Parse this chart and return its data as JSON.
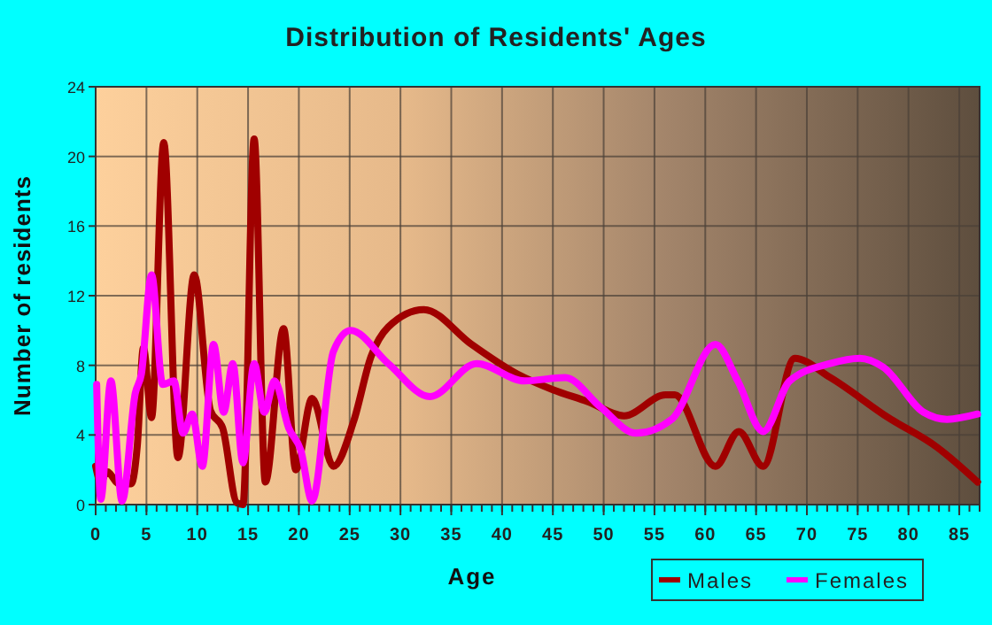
{
  "chart_data": {
    "type": "line",
    "title": "Distribution of Residents' Ages",
    "xlabel": "Age",
    "ylabel": "Number of residents",
    "xlim": [
      0,
      87
    ],
    "xticks": [
      0,
      5,
      10,
      15,
      20,
      25,
      30,
      35,
      40,
      45,
      50,
      55,
      60,
      65,
      70,
      75,
      80,
      85
    ],
    "ylim": [
      0,
      24
    ],
    "yticks": [
      0,
      4,
      8,
      12,
      16,
      20,
      24
    ],
    "grid": true,
    "legend": "bottom right",
    "marker": "none",
    "line_style": "solid",
    "series": [
      {
        "name": "Males",
        "color": "#a00000",
        "x": [
          0,
          0.5,
          1.1,
          2.3,
          3.5,
          4.1,
          4.7,
          5.5,
          6.7,
          8.1,
          9.7,
          11.3,
          12.5,
          13.9,
          14.5,
          15.6,
          16.7,
          18.5,
          19.7,
          21.3,
          23.4,
          25.4,
          27.1,
          28.8,
          32.3,
          37,
          41.5,
          45,
          48.5,
          52,
          56.1,
          57,
          61,
          63.3,
          65.7,
          68.8,
          72.3,
          78,
          82.8,
          86.8
        ],
        "values": [
          2.2,
          1.3,
          1.9,
          1.2,
          1.2,
          3.4,
          9,
          5,
          20.8,
          2.7,
          13.2,
          5.4,
          4.4,
          0.1,
          0,
          21,
          1.3,
          10.1,
          2,
          6.1,
          2.2,
          4.8,
          8.5,
          10.2,
          11.2,
          9.2,
          7.5,
          6.6,
          5.9,
          5.1,
          6.3,
          6.3,
          2.2,
          4.2,
          2.2,
          8.4,
          7.3,
          5,
          3.3,
          1.3
        ]
      },
      {
        "name": "Females",
        "color": "#ff00ff",
        "x": [
          0.1,
          0.5,
          1.5,
          2.6,
          3.9,
          4.5,
          5.5,
          6.6,
          7.7,
          8.6,
          9.5,
          10.5,
          11.6,
          12.6,
          13.5,
          14.5,
          15.6,
          16.6,
          17.6,
          19,
          20.2,
          21.3,
          23.4,
          25.1,
          28.8,
          32.9,
          37.5,
          42.2,
          46.2,
          49.7,
          53.2,
          56.7,
          61,
          63.2,
          65.7,
          68.3,
          72.3,
          75.2,
          77.5,
          81.5,
          83.8,
          86.8
        ],
        "values": [
          6.9,
          0.3,
          7.1,
          0.2,
          6.4,
          7.5,
          13.2,
          6.9,
          7.1,
          4.1,
          5.2,
          2.2,
          9.2,
          5.3,
          8.1,
          2.4,
          8.1,
          5.3,
          7.1,
          4.4,
          3.1,
          0.2,
          8.8,
          10,
          8.1,
          6.2,
          8.1,
          7.1,
          7.3,
          5.6,
          4.1,
          4.9,
          9.2,
          7.1,
          4.2,
          7.1,
          8.1,
          8.4,
          7.9,
          5.3,
          4.9,
          5.2
        ]
      }
    ]
  }
}
